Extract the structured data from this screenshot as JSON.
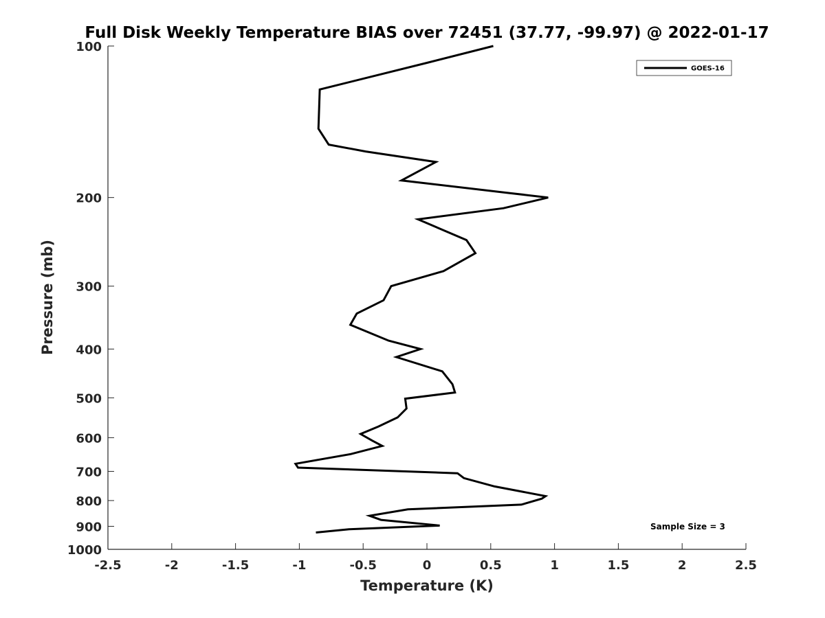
{
  "chart_data": {
    "type": "line",
    "title": "Full Disk Weekly Temperature BIAS over 72451 (37.77, -99.97) @ 2022-01-17",
    "xlabel": "Temperature (K)",
    "ylabel": "Pressure (mb)",
    "xlim": [
      -2.5,
      2.5
    ],
    "ylim": [
      100,
      1000
    ],
    "y_scale": "log",
    "y_reversed": true,
    "x_ticks": [
      -2.5,
      -2,
      -1.5,
      -1,
      -0.5,
      0,
      0.5,
      1,
      1.5,
      2,
      2.5
    ],
    "x_tick_labels": [
      "-2.5",
      "-2",
      "-1.5",
      "-1",
      "-0.5",
      "0",
      "0.5",
      "1",
      "1.5",
      "2",
      "2.5"
    ],
    "y_ticks": [
      100,
      200,
      300,
      400,
      500,
      600,
      700,
      800,
      900,
      1000
    ],
    "y_tick_labels": [
      "100",
      "200",
      "300",
      "400",
      "500",
      "600",
      "700",
      "800",
      "900",
      "1000"
    ],
    "grid": false,
    "legend": {
      "position": "top-right",
      "entries": [
        "GOES-16"
      ]
    },
    "annotation": "Sample Size = 3",
    "series": [
      {
        "name": "GOES-16",
        "color": "#000000",
        "points": [
          [
            0.52,
            100
          ],
          [
            0.0,
            108
          ],
          [
            -0.84,
            122
          ],
          [
            -0.85,
            146
          ],
          [
            -0.77,
            157
          ],
          [
            -0.48,
            162
          ],
          [
            0.07,
            170
          ],
          [
            -0.2,
            185
          ],
          [
            0.65,
            196
          ],
          [
            0.95,
            200
          ],
          [
            0.6,
            210
          ],
          [
            -0.07,
            221
          ],
          [
            0.31,
            243
          ],
          [
            0.38,
            258
          ],
          [
            0.13,
            280
          ],
          [
            -0.28,
            300
          ],
          [
            -0.34,
            320
          ],
          [
            -0.55,
            340
          ],
          [
            -0.6,
            358
          ],
          [
            -0.3,
            385
          ],
          [
            -0.05,
            400
          ],
          [
            -0.24,
            415
          ],
          [
            0.12,
            443
          ],
          [
            0.2,
            470
          ],
          [
            0.22,
            488
          ],
          [
            -0.17,
            502
          ],
          [
            -0.16,
            525
          ],
          [
            -0.23,
            547
          ],
          [
            -0.38,
            570
          ],
          [
            -0.52,
            590
          ],
          [
            -0.43,
            608
          ],
          [
            -0.35,
            623
          ],
          [
            -0.6,
            647
          ],
          [
            -1.03,
            676
          ],
          [
            -1.01,
            688
          ],
          [
            0.24,
            706
          ],
          [
            0.29,
            722
          ],
          [
            0.53,
            750
          ],
          [
            0.93,
            784
          ],
          [
            0.9,
            793
          ],
          [
            0.74,
            815
          ],
          [
            -0.15,
            833
          ],
          [
            -0.45,
            858
          ],
          [
            -0.36,
            874
          ],
          [
            0.1,
            897
          ],
          [
            -0.61,
            912
          ],
          [
            -0.87,
            926
          ]
        ]
      }
    ]
  }
}
